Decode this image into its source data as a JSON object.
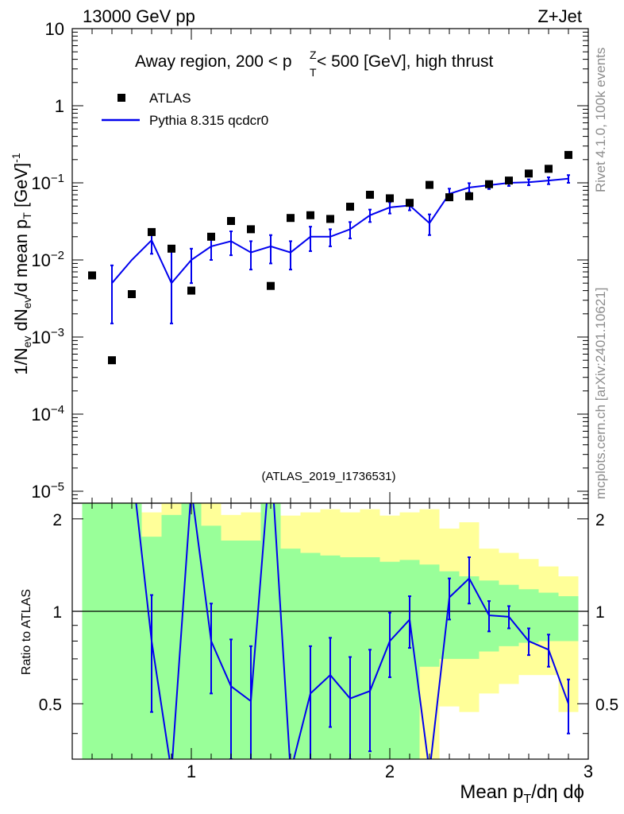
{
  "chart_data": {
    "type": "scatter",
    "header_left": "13000 GeV pp",
    "header_right": "Z+Jet",
    "title_parts": [
      "Away region, 200 < p",
      "Z",
      "T",
      " < 500 [GeV], high thrust"
    ],
    "analysis_id": "(ATLAS_2019_I1736531)",
    "side_label_top": "Rivet 4.1.0,  100k events",
    "side_label_bottom": "mcplots.cern.ch [arXiv:2401.10621]",
    "ylabel_main": "1/N_ev dN_ev/d mean p_T [GeV]^-1",
    "ylabel_ratio": "Ratio to ATLAS",
    "xlabel": "Mean p_T/dη dϕ",
    "xlim": [
      0.4,
      3.0
    ],
    "ylim_main": [
      7e-06,
      10
    ],
    "ylim_ratio": [
      0.33,
      2.25
    ],
    "x_ticks": [
      "1",
      "2",
      "3"
    ],
    "y_ticks_main": [
      {
        "base": "10",
        "exp": "",
        "value": 10
      },
      {
        "base": "1",
        "exp": "",
        "value": 1
      },
      {
        "base": "10",
        "exp": "−1",
        "value": 0.1
      },
      {
        "base": "10",
        "exp": "−2",
        "value": 0.01
      },
      {
        "base": "10",
        "exp": "−3",
        "value": 0.001
      },
      {
        "base": "10",
        "exp": "−4",
        "value": 0.0001
      },
      {
        "base": "10",
        "exp": "−5",
        "value": 1e-05
      }
    ],
    "y_ticks_ratio": [
      "0.5",
      "1",
      "2"
    ],
    "legend": [
      {
        "label": "ATLAS",
        "marker": "square"
      },
      {
        "label": "Pythia 8.315 qcdcr0",
        "marker": "line"
      }
    ],
    "colors": {
      "data": "#000000",
      "mc": "#0000ee",
      "band_inner": "#99ff99",
      "band_outer": "#ffff99"
    },
    "series": [
      {
        "name": "ATLAS",
        "x": [
          0.5,
          0.6,
          0.7,
          0.8,
          0.9,
          1.0,
          1.1,
          1.2,
          1.3,
          1.4,
          1.5,
          1.6,
          1.7,
          1.8,
          1.9,
          2.0,
          2.1,
          2.2,
          2.3,
          2.4,
          2.5,
          2.6,
          2.7,
          2.8,
          2.9
        ],
        "y": [
          0.0063,
          0.0005,
          0.0036,
          0.023,
          0.014,
          0.004,
          0.02,
          0.032,
          0.025,
          0.0046,
          0.035,
          0.038,
          0.034,
          0.049,
          0.07,
          0.063,
          0.055,
          0.094,
          0.065,
          0.067,
          0.096,
          0.107,
          0.132,
          0.152,
          0.23
        ]
      },
      {
        "name": "Pythia 8.315 qcdcr0",
        "x": [
          0.6,
          0.7,
          0.8,
          0.9,
          1.0,
          1.1,
          1.2,
          1.3,
          1.4,
          1.5,
          1.6,
          1.7,
          1.8,
          1.9,
          2.0,
          2.1,
          2.2,
          2.3,
          2.4,
          2.5,
          2.6,
          2.7,
          2.8,
          2.9
        ],
        "y": [
          0.005,
          0.01,
          0.018,
          0.005,
          0.01,
          0.015,
          0.0175,
          0.0125,
          0.015,
          0.0125,
          0.02,
          0.02,
          0.025,
          0.038,
          0.048,
          0.051,
          0.03,
          0.072,
          0.087,
          0.093,
          0.1,
          0.102,
          0.107,
          0.113
        ],
        "err_low": [
          0.0035,
          0.0,
          0.006,
          0.0035,
          0.005,
          0.005,
          0.006,
          0.005,
          0.006,
          0.005,
          0.007,
          0.005,
          0.006,
          0.007,
          0.008,
          0.007,
          0.009,
          0.012,
          0.012,
          0.01,
          0.009,
          0.009,
          0.011,
          0.013
        ],
        "err_high": [
          0.0035,
          0.0,
          0.006,
          0.009,
          0.004,
          0.005,
          0.006,
          0.005,
          0.006,
          0.005,
          0.007,
          0.005,
          0.006,
          0.007,
          0.008,
          0.007,
          0.009,
          0.012,
          0.012,
          0.01,
          0.009,
          0.009,
          0.011,
          0.013
        ]
      }
    ],
    "ratio": {
      "x": [
        0.6,
        0.7,
        0.8,
        0.9,
        1.0,
        1.1,
        1.2,
        1.3,
        1.4,
        1.5,
        1.6,
        1.7,
        1.8,
        1.9,
        2.0,
        2.1,
        2.2,
        2.3,
        2.4,
        2.5,
        2.6,
        2.7,
        2.8,
        2.9
      ],
      "y": [
        10.0,
        3.0,
        0.8,
        0.3,
        2.5,
        0.8,
        0.57,
        0.51,
        3.3,
        0.3,
        0.54,
        0.62,
        0.52,
        0.55,
        0.8,
        0.94,
        0.3,
        1.11,
        1.28,
        0.97,
        0.96,
        0.8,
        0.75,
        0.5
      ],
      "err": [
        0.0,
        0.0,
        0.33,
        0.0,
        0.0,
        0.26,
        0.24,
        0.26,
        0.0,
        0.0,
        0.23,
        0.2,
        0.19,
        0.2,
        0.19,
        0.18,
        0.0,
        0.17,
        0.22,
        0.11,
        0.08,
        0.08,
        0.09,
        0.1
      ]
    },
    "bands": {
      "edges": [
        0.45,
        0.55,
        0.65,
        0.75,
        0.85,
        0.95,
        1.05,
        1.15,
        1.25,
        1.35,
        1.45,
        1.55,
        1.65,
        1.75,
        1.85,
        1.95,
        2.05,
        2.15,
        2.25,
        2.35,
        2.45,
        2.55,
        2.65,
        2.75,
        2.85,
        2.95
      ],
      "outer_high": [
        2.25,
        2.25,
        2.25,
        2.1,
        2.25,
        2.25,
        2.25,
        2.06,
        2.1,
        2.25,
        2.05,
        2.1,
        2.15,
        2.1,
        2.15,
        2.05,
        2.1,
        2.15,
        1.86,
        1.95,
        1.6,
        1.55,
        1.48,
        1.4,
        1.3
      ],
      "inner_high": [
        2.25,
        2.25,
        2.25,
        1.75,
        2.06,
        2.25,
        1.9,
        1.7,
        1.7,
        2.25,
        1.6,
        1.55,
        1.52,
        1.5,
        1.5,
        1.45,
        1.47,
        1.42,
        1.35,
        1.3,
        1.26,
        1.22,
        1.18,
        1.15,
        1.12
      ],
      "inner_low": [
        0.33,
        0.33,
        0.33,
        0.33,
        0.33,
        0.33,
        0.33,
        0.33,
        0.33,
        0.33,
        0.33,
        0.33,
        0.33,
        0.33,
        0.33,
        0.33,
        0.33,
        0.66,
        0.7,
        0.7,
        0.74,
        0.77,
        0.79,
        0.8,
        0.8
      ],
      "outer_low": [
        0.33,
        0.33,
        0.36,
        0.33,
        0.33,
        0.33,
        0.33,
        0.33,
        0.33,
        0.33,
        0.33,
        0.33,
        0.33,
        0.33,
        0.37,
        0.33,
        0.33,
        0.33,
        0.49,
        0.47,
        0.54,
        0.58,
        0.62,
        0.62,
        0.47
      ]
    }
  }
}
